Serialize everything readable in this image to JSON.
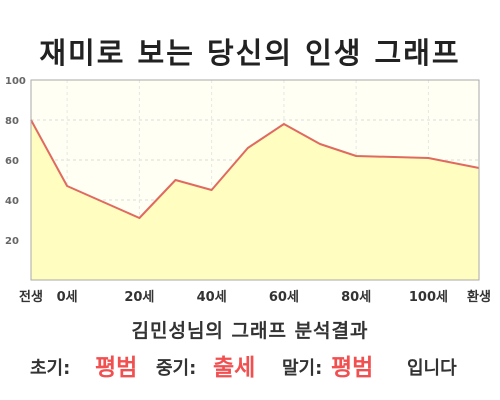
{
  "title": "재미로 보는 당신의 인생 그래프",
  "subtitle": "김민성님의 그래프 분석결과",
  "result": {
    "early_label": "초기:",
    "early_value": "평범",
    "middle_label": "중기:",
    "middle_value": "출세",
    "late_label": "말기:",
    "late_value": "평범",
    "suffix": "입니다"
  },
  "colors": {
    "line": "#e06a60",
    "fill": "#fffdc0",
    "plot_bg": "#fffff4",
    "highlight": "#f25050"
  },
  "chart_data": {
    "type": "area",
    "x": [
      -10,
      0,
      20,
      30,
      40,
      50,
      60,
      70,
      80,
      100,
      114
    ],
    "values": [
      80,
      47,
      31,
      50,
      45,
      66,
      78,
      68,
      62,
      61,
      56
    ],
    "x_ticks": [
      {
        "value": -10,
        "label": "전생"
      },
      {
        "value": 0,
        "label": "0세"
      },
      {
        "value": 20,
        "label": "20세"
      },
      {
        "value": 40,
        "label": "40세"
      },
      {
        "value": 60,
        "label": "60세"
      },
      {
        "value": 80,
        "label": "80세"
      },
      {
        "value": 100,
        "label": "100세"
      },
      {
        "value": 114,
        "label": "환생"
      }
    ],
    "y_ticks": [
      20,
      40,
      60,
      80,
      100
    ],
    "xlim": [
      -10,
      114
    ],
    "ylim": [
      0,
      100
    ],
    "grid": true,
    "legend": "none",
    "xlabel": "",
    "ylabel": ""
  }
}
